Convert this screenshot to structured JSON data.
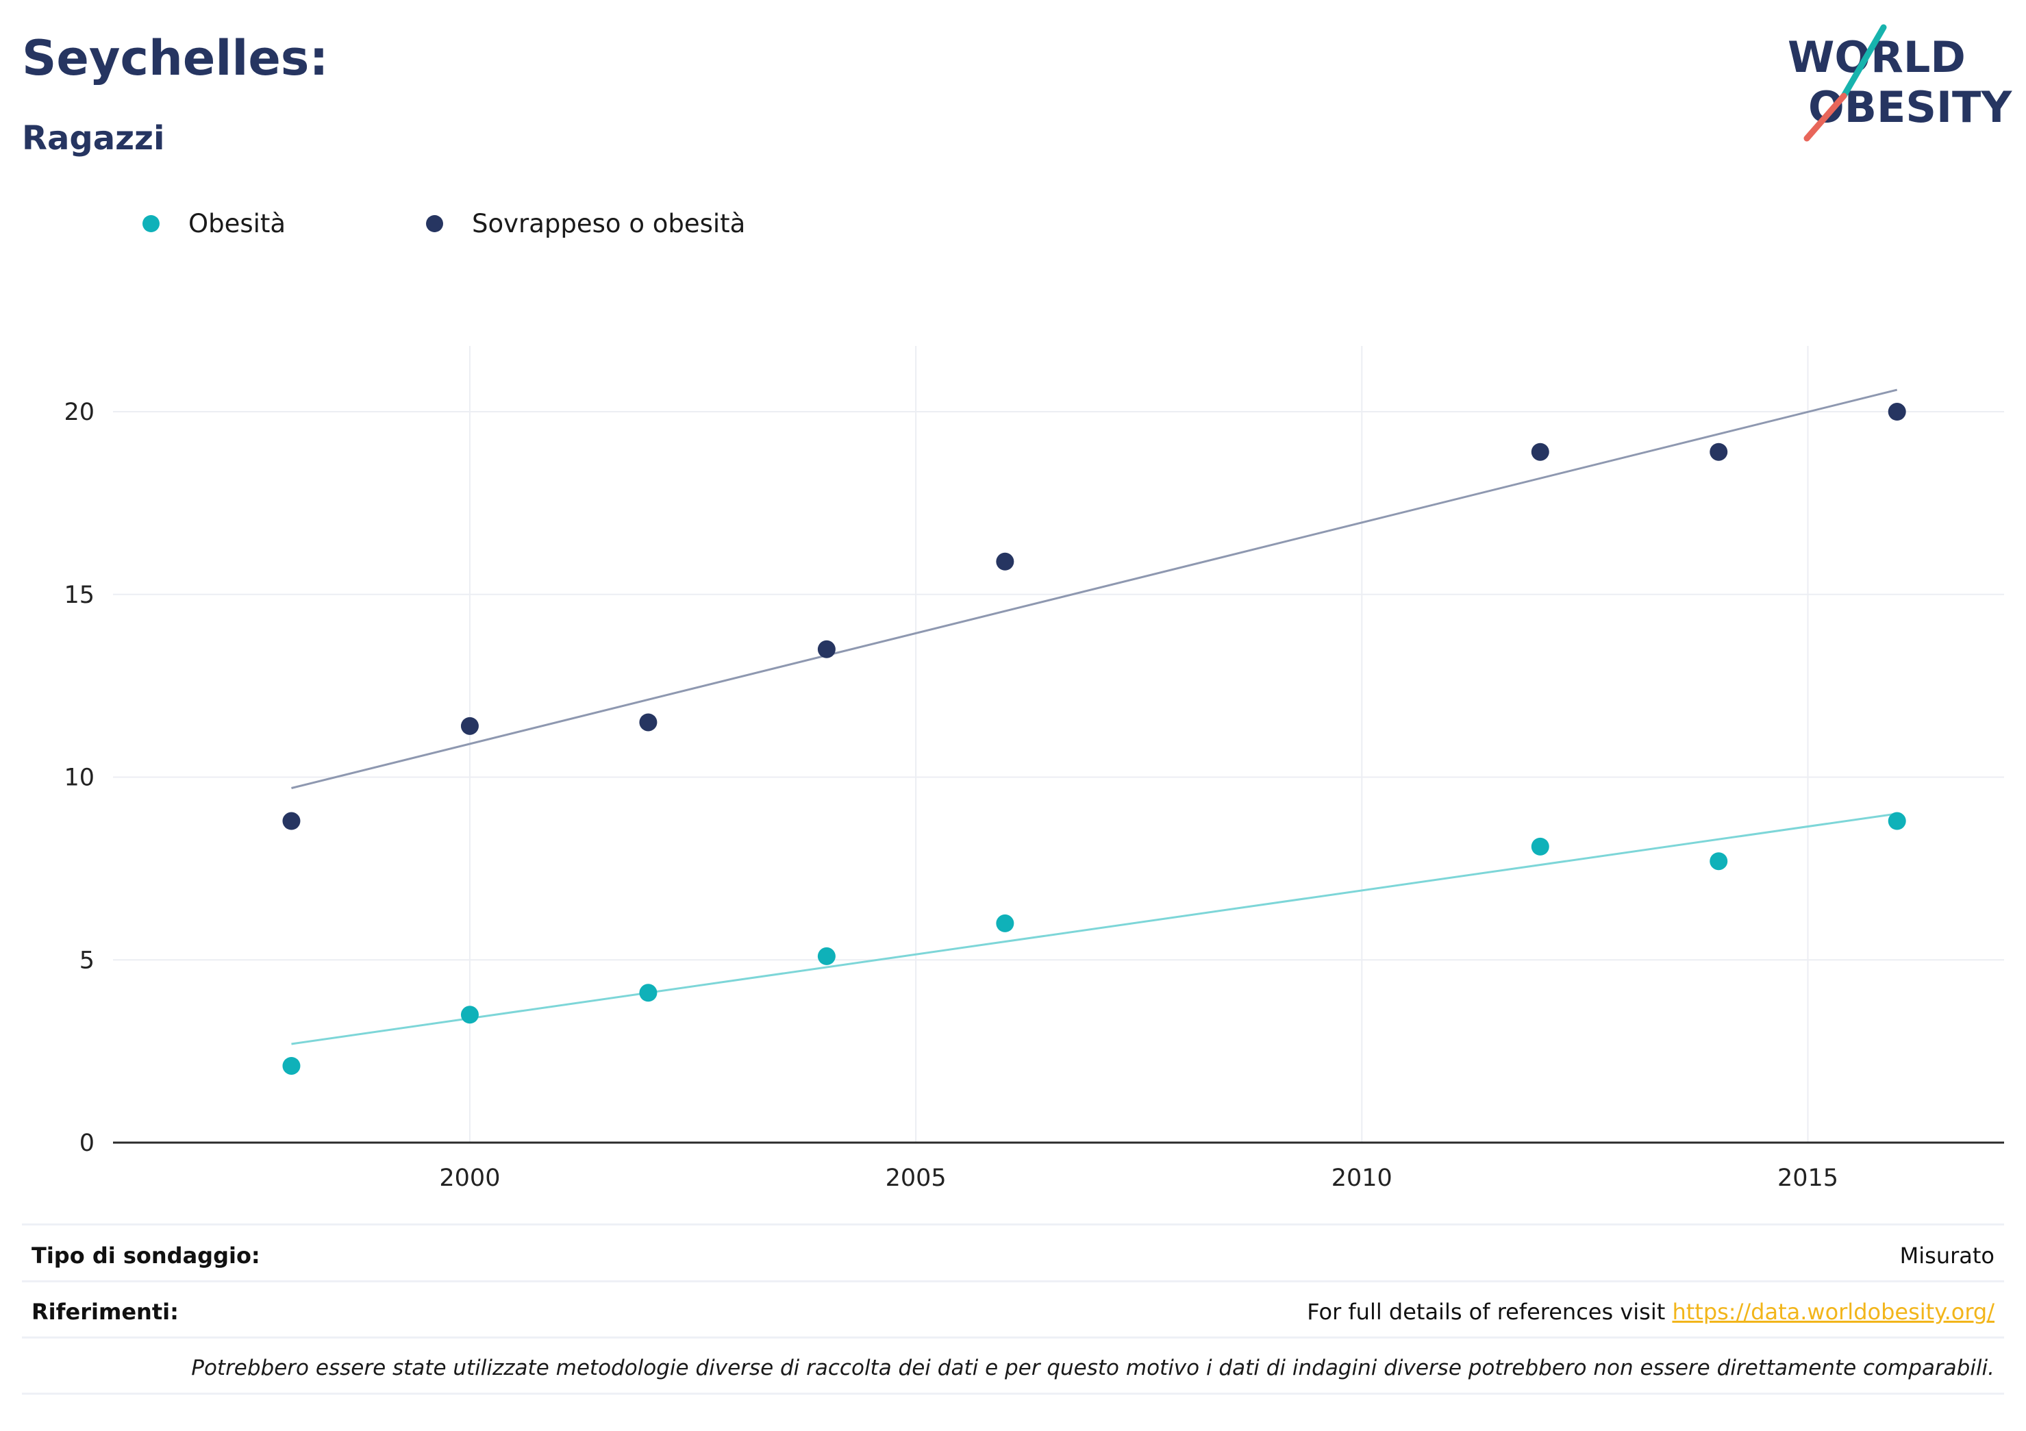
{
  "header": {
    "title": "Seychelles:",
    "subtitle": "Ragazzi"
  },
  "logo": {
    "line1": "WORLD",
    "line2": "OBESITY",
    "colors": {
      "text": "#263561",
      "slash_teal": "#17b3ad",
      "slash_red": "#e8665a"
    }
  },
  "chart_data": {
    "type": "scatter",
    "x": [
      1998,
      2000,
      2002,
      2004,
      2006,
      2012,
      2014,
      2016
    ],
    "series": [
      {
        "name": "Obesità",
        "color": "#0fb1b9",
        "trend_color": "#7dd6d8",
        "values": [
          2.1,
          3.5,
          4.1,
          5.1,
          6.0,
          8.1,
          7.7,
          8.8
        ],
        "trend": {
          "x": [
            1998,
            2016
          ],
          "y": [
            2.7,
            9.0
          ]
        }
      },
      {
        "name": "Sovrappeso o obesità",
        "color": "#263561",
        "trend_color": "#8e98b0",
        "values": [
          8.8,
          11.4,
          11.5,
          13.5,
          15.9,
          18.9,
          18.9,
          20.0
        ],
        "trend": {
          "x": [
            1998,
            2016
          ],
          "y": [
            9.7,
            20.6
          ]
        }
      }
    ],
    "xlim": [
      1996,
      2017.2
    ],
    "ylim": [
      0,
      21.8
    ],
    "xticks": [
      2000,
      2005,
      2010,
      2015
    ],
    "yticks": [
      0,
      5,
      10,
      15,
      20
    ],
    "xlabel": "",
    "ylabel": "",
    "grid": true,
    "legend": "top-left"
  },
  "footer": {
    "survey_label": "Tipo di sondaggio:",
    "survey_value": "Misurato",
    "references_label": "Riferimenti:",
    "references_text": "For full details of references visit",
    "references_link": "https://data.worldobesity.org/",
    "note": "Potrebbero essere state utilizzate metodologie diverse di raccolta dei dati e per questo motivo i dati di indagini diverse potrebbero non essere direttamente comparabili."
  }
}
